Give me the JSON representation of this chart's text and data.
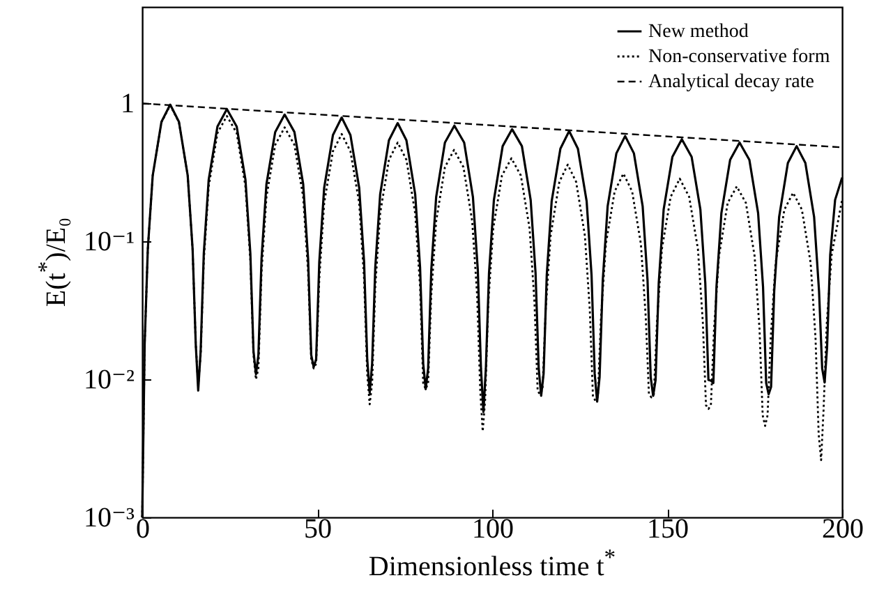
{
  "chart_data": {
    "type": "line",
    "xlabel": "Dimensionless time t$^{*}$",
    "ylabel": "E(t$^{*}$)/E₀",
    "xlim": [
      0,
      200
    ],
    "xticks": [
      0,
      50,
      100,
      150,
      200
    ],
    "ylim": [
      0.001,
      5
    ],
    "yticks": [
      {
        "value": 0.001,
        "label": "10⁻³"
      },
      {
        "value": 0.01,
        "label": "10⁻²"
      },
      {
        "value": 0.1,
        "label": "10⁻¹"
      },
      1
    ],
    "log": "y",
    "grid": false,
    "legend": "top right",
    "marker": "none",
    "series": [
      {
        "name": "New method",
        "color": "#000000",
        "line_style": "solid",
        "x": [
          0,
          0.7,
          1.6,
          3,
          5.5,
          8,
          10.5,
          13,
          14.4,
          15.3,
          16,
          16.7,
          17.6,
          19,
          21.5,
          24.2,
          27,
          29.5,
          30.9,
          31.8,
          32.5,
          33.2,
          34.1,
          35.5,
          38,
          40.7,
          43.5,
          46,
          47.4,
          48.3,
          49,
          49.7,
          50.6,
          52,
          54.5,
          57,
          59.5,
          62,
          63.4,
          64.3,
          65,
          65.7,
          66.6,
          68,
          70.5,
          73,
          75.5,
          78,
          79.4,
          80.3,
          81,
          81.7,
          82.6,
          84,
          86.5,
          89.2,
          92,
          94.5,
          95.9,
          96.8,
          97.5,
          98.2,
          99.1,
          100.5,
          103,
          105.7,
          108.5,
          111,
          112.4,
          113.3,
          114,
          114.7,
          115.6,
          117,
          119.5,
          122,
          124.5,
          127,
          128.4,
          129.3,
          130,
          130.7,
          131.6,
          133,
          135.5,
          138,
          140.5,
          143,
          144.4,
          145.3,
          146,
          146.7,
          147.6,
          149,
          151.5,
          154.2,
          157,
          159.5,
          160.9,
          161.8,
          162.5,
          163.2,
          164.1,
          165.5,
          168,
          170.7,
          173.5,
          176,
          177.4,
          178.3,
          179,
          179.7,
          180.6,
          182,
          184.5,
          187,
          189.5,
          192,
          193.4,
          194.3,
          195,
          195.7,
          196.6,
          198,
          200
        ],
        "values": [
          0.001,
          0.018,
          0.088,
          0.3,
          0.735,
          0.98,
          0.735,
          0.3,
          0.088,
          0.018,
          0.0083,
          0.016,
          0.082,
          0.28,
          0.68,
          0.91,
          0.68,
          0.28,
          0.082,
          0.016,
          0.0109,
          0.015,
          0.075,
          0.26,
          0.62,
          0.83,
          0.62,
          0.26,
          0.075,
          0.015,
          0.0123,
          0.014,
          0.071,
          0.245,
          0.59,
          0.79,
          0.59,
          0.245,
          0.071,
          0.014,
          0.008,
          0.013,
          0.065,
          0.22,
          0.54,
          0.72,
          0.54,
          0.22,
          0.065,
          0.013,
          0.0085,
          0.012,
          0.062,
          0.21,
          0.52,
          0.69,
          0.52,
          0.21,
          0.062,
          0.012,
          0.0058,
          0.012,
          0.059,
          0.2,
          0.49,
          0.65,
          0.49,
          0.2,
          0.059,
          0.012,
          0.0076,
          0.011,
          0.057,
          0.195,
          0.47,
          0.63,
          0.47,
          0.195,
          0.057,
          0.011,
          0.0069,
          0.0104,
          0.052,
          0.18,
          0.435,
          0.58,
          0.435,
          0.18,
          0.052,
          0.0104,
          0.0076,
          0.0099,
          0.05,
          0.17,
          0.41,
          0.55,
          0.41,
          0.17,
          0.05,
          0.0099,
          0.0098,
          0.0094,
          0.047,
          0.16,
          0.39,
          0.52,
          0.39,
          0.16,
          0.047,
          0.0094,
          0.0078,
          0.0088,
          0.044,
          0.15,
          0.37,
          0.49,
          0.37,
          0.15,
          0.044,
          0.012,
          0.0095,
          0.017,
          0.08,
          0.2,
          0.29
        ]
      },
      {
        "name": "Non-conservative form",
        "color": "#000000",
        "line_style": "dotted",
        "x": [
          0,
          0.7,
          1.6,
          3,
          5.5,
          8,
          10.5,
          13,
          14.4,
          15.3,
          16,
          16.7,
          17.6,
          19,
          21.5,
          24.2,
          27,
          29.5,
          30.9,
          31.8,
          32.5,
          33.2,
          34.1,
          35.5,
          38,
          40.7,
          43.5,
          46,
          47.4,
          48.3,
          49,
          49.7,
          50.6,
          52,
          54.5,
          57,
          59.5,
          62,
          63.4,
          64.3,
          65,
          65.7,
          66.6,
          68,
          70.5,
          73,
          75.5,
          78,
          79.4,
          80.3,
          81,
          81.7,
          82.6,
          84,
          86.5,
          89.1,
          91.8,
          94.3,
          95.7,
          96.6,
          97.3,
          98,
          98.9,
          100.3,
          102.8,
          105.5,
          108.2,
          110.7,
          112.1,
          113,
          113.7,
          114.4,
          115.3,
          116.7,
          119.2,
          121.6,
          124,
          126.5,
          127.9,
          128.8,
          129.5,
          130.2,
          131.1,
          132.5,
          135,
          137.5,
          140,
          142.5,
          143.9,
          144.8,
          145.5,
          146.2,
          147.1,
          148.5,
          151,
          153.6,
          156.3,
          158.8,
          160.2,
          161.1,
          161.8,
          162.5,
          163.4,
          164.8,
          167.3,
          169.9,
          172.5,
          175,
          176.4,
          177.3,
          178,
          178.7,
          179.6,
          181,
          183.5,
          186,
          188.5,
          191,
          192.4,
          193.3,
          194,
          194.7,
          195.6,
          197,
          200
        ],
        "values": [
          0.001,
          0.018,
          0.087,
          0.3,
          0.73,
          0.97,
          0.73,
          0.3,
          0.087,
          0.018,
          0.009,
          0.015,
          0.073,
          0.25,
          0.61,
          0.81,
          0.61,
          0.25,
          0.073,
          0.015,
          0.01,
          0.012,
          0.06,
          0.21,
          0.5,
          0.67,
          0.5,
          0.21,
          0.06,
          0.014,
          0.012,
          0.013,
          0.054,
          0.19,
          0.45,
          0.6,
          0.45,
          0.19,
          0.054,
          0.011,
          0.0066,
          0.0094,
          0.047,
          0.16,
          0.39,
          0.52,
          0.39,
          0.16,
          0.047,
          0.0094,
          0.0085,
          0.0094,
          0.041,
          0.14,
          0.345,
          0.46,
          0.345,
          0.14,
          0.041,
          0.0083,
          0.0042,
          0.0072,
          0.036,
          0.124,
          0.3,
          0.4,
          0.3,
          0.124,
          0.036,
          0.0082,
          0.0078,
          0.0085,
          0.032,
          0.11,
          0.27,
          0.36,
          0.27,
          0.11,
          0.032,
          0.0075,
          0.007,
          0.0075,
          0.028,
          0.096,
          0.23,
          0.31,
          0.23,
          0.096,
          0.028,
          0.0078,
          0.0074,
          0.0078,
          0.026,
          0.088,
          0.21,
          0.285,
          0.21,
          0.088,
          0.026,
          0.0065,
          0.0061,
          0.0065,
          0.023,
          0.078,
          0.19,
          0.25,
          0.19,
          0.078,
          0.023,
          0.0055,
          0.0046,
          0.0055,
          0.02,
          0.07,
          0.17,
          0.225,
          0.17,
          0.07,
          0.02,
          0.004,
          0.0026,
          0.006,
          0.025,
          0.08,
          0.2
        ]
      },
      {
        "name": "Analytical decay rate",
        "color": "#000000",
        "line_style": "dashed",
        "x": [
          0,
          200
        ],
        "values": [
          1,
          0.48
        ]
      }
    ]
  }
}
